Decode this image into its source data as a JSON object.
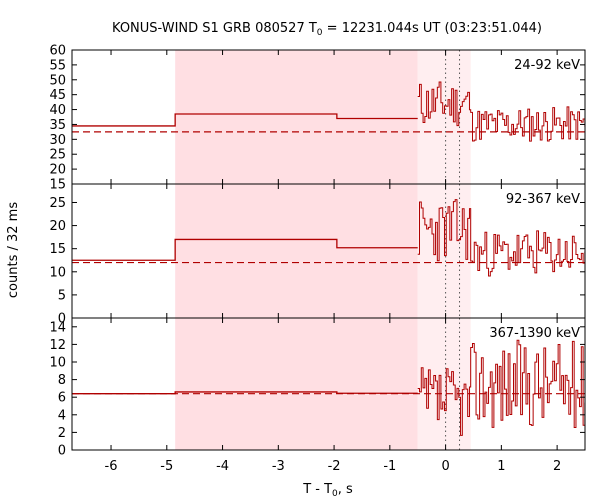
{
  "chart_data": {
    "type": "line",
    "title_main": "KONUS-WIND S1 GRB 080527 T",
    "title_sub": "0",
    "title_rest": " = 12231.044s UT (03:23:51.044)",
    "xlabel_main": "T - T",
    "xlabel_sub": "0",
    "xlabel_rest": ", s",
    "ylabel": "counts / 32 ms",
    "xlim": [
      -6.7,
      2.5
    ],
    "xticks": [
      -6,
      -5,
      -4,
      -3,
      -2,
      -1,
      0,
      1,
      2
    ],
    "xtick_labels": [
      "-6",
      "-5",
      "-4",
      "-3",
      "-2",
      "-1",
      "0",
      "1",
      "2"
    ],
    "shaded_intervals": [
      {
        "name": "background-interval",
        "x0": -4.85,
        "x1": -0.5,
        "color": "#ffdfe3"
      },
      {
        "name": "burst-interval",
        "x0": -0.5,
        "x1": 0.45,
        "color": "#ffeef0"
      }
    ],
    "vertical_markers": [
      0.0,
      0.25
    ],
    "line_color": "#b00000",
    "panels": [
      {
        "label": "24-92 keV",
        "ylim": [
          15,
          60
        ],
        "yticks": [
          15,
          20,
          25,
          30,
          35,
          40,
          45,
          50,
          55,
          60
        ],
        "ytick_labels": [
          "15",
          "20",
          "25",
          "30",
          "35",
          "40",
          "45",
          "50",
          "55",
          "60"
        ],
        "background_level": 32.5,
        "steps": [
          [
            -6.7,
            34.5
          ],
          [
            -4.85,
            38.5
          ],
          [
            -1.95,
            37.0
          ],
          [
            -0.5,
            37.0
          ]
        ],
        "lc_seed": 11,
        "lc_segments": [
          {
            "x0": -0.5,
            "x1": 0.45,
            "base": 42,
            "amp": 8
          },
          {
            "x0": 0.45,
            "x1": 2.5,
            "base": 35,
            "amp": 6
          }
        ]
      },
      {
        "label": "92-367 keV",
        "ylim": [
          0,
          29
        ],
        "yticks": [
          0,
          5,
          10,
          15,
          20,
          25
        ],
        "ytick_labels": [
          "0",
          "5",
          "10",
          "15",
          "20",
          "25"
        ],
        "background_level": 12.0,
        "steps": [
          [
            -6.7,
            12.5
          ],
          [
            -4.85,
            17.0
          ],
          [
            -1.95,
            15.2
          ],
          [
            -0.5,
            15.2
          ]
        ],
        "lc_seed": 23,
        "lc_segments": [
          {
            "x0": -0.5,
            "x1": 0.45,
            "base": 19,
            "amp": 7
          },
          {
            "x0": 0.45,
            "x1": 2.5,
            "base": 14,
            "amp": 5
          }
        ]
      },
      {
        "label": "367-1390 keV",
        "ylim": [
          0,
          15
        ],
        "yticks": [
          0,
          2,
          4,
          6,
          8,
          10,
          12,
          14
        ],
        "ytick_labels": [
          "0",
          "2",
          "4",
          "6",
          "8",
          "10",
          "12",
          "14"
        ],
        "background_level": 6.4,
        "steps": [
          [
            -6.7,
            6.4
          ],
          [
            -4.85,
            6.6
          ],
          [
            -1.95,
            6.45
          ],
          [
            -0.5,
            6.45
          ]
        ],
        "lc_seed": 37,
        "lc_segments": [
          {
            "x0": -0.5,
            "x1": 0.45,
            "base": 5.5,
            "amp": 4
          },
          {
            "x0": 0.45,
            "x1": 2.5,
            "base": 7.5,
            "amp": 5
          }
        ]
      }
    ]
  }
}
